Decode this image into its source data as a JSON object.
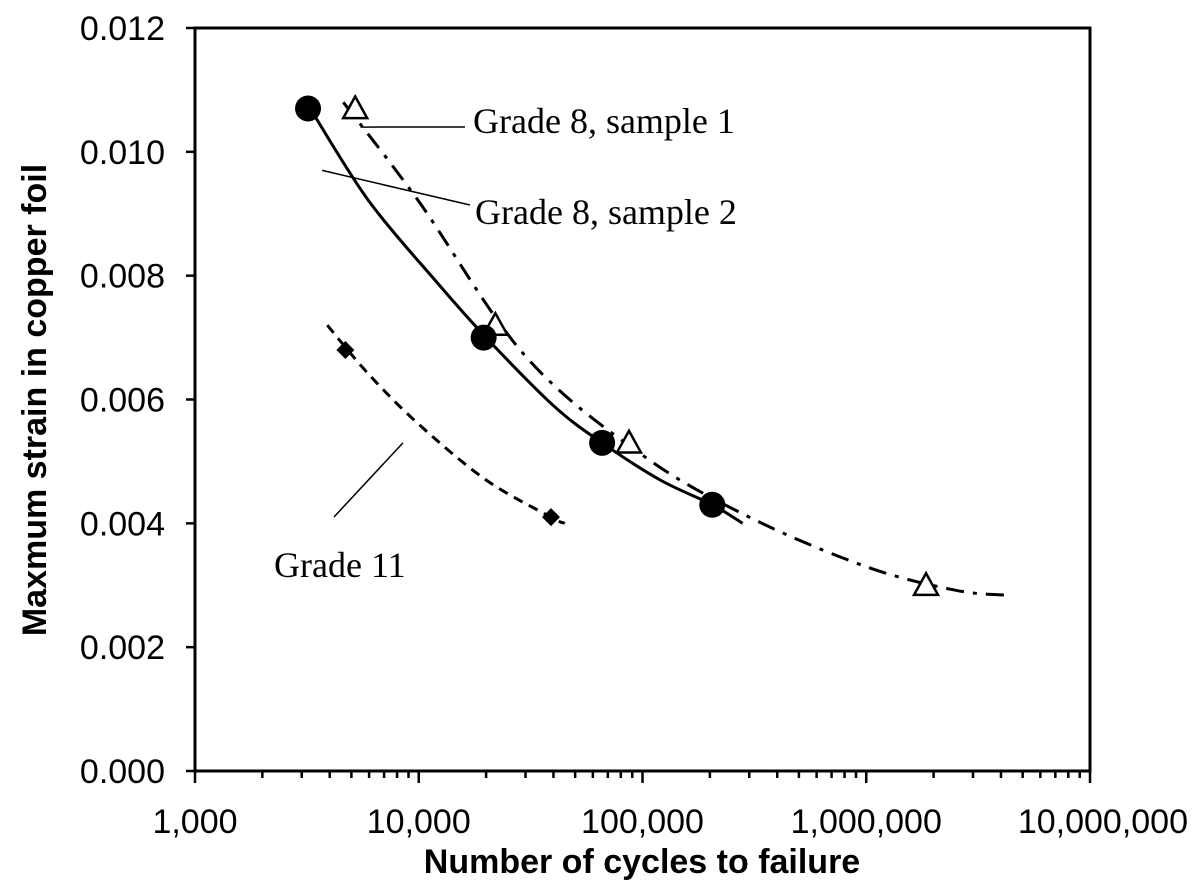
{
  "chart_data": {
    "type": "scatter",
    "title": "",
    "xlabel": "Number of cycles to failure",
    "ylabel": "Maxmum strain in copper foil",
    "xscale": "log",
    "xlim": [
      1000,
      10000000
    ],
    "ylim": [
      0.0,
      0.012
    ],
    "x_ticks": [
      1000,
      10000,
      100000,
      1000000,
      10000000
    ],
    "x_tick_labels": [
      "1,000",
      "10,000",
      "100,000",
      "1,000,000",
      "10,000,000"
    ],
    "y_ticks": [
      0.0,
      0.002,
      0.004,
      0.006,
      0.008,
      0.01,
      0.012
    ],
    "y_tick_labels": [
      "0.000",
      "0.002",
      "0.004",
      "0.006",
      "0.008",
      "0.010",
      "0.012"
    ],
    "grid": false,
    "legend": "none",
    "series": [
      {
        "name": "Grade 8, sample 1",
        "marker": "open-triangle",
        "line": "dash-dot",
        "points": [
          [
            5200,
            0.0107
          ],
          [
            22000,
            0.0072
          ],
          [
            87000,
            0.0053
          ],
          [
            1850000,
            0.003
          ]
        ],
        "trend": [
          [
            4600,
            0.0108
          ],
          [
            10000,
            0.0092
          ],
          [
            30000,
            0.0067
          ],
          [
            100000,
            0.0051
          ],
          [
            300000,
            0.0041
          ],
          [
            1000000,
            0.0033
          ],
          [
            2500000,
            0.00292
          ],
          [
            4200000,
            0.00284
          ]
        ]
      },
      {
        "name": "Grade 8, sample 2",
        "marker": "filled-circle",
        "line": "solid",
        "points": [
          [
            3200,
            0.0107
          ],
          [
            19500,
            0.007
          ],
          [
            66000,
            0.0053
          ],
          [
            205000,
            0.0043
          ]
        ],
        "trend": [
          [
            3400,
            0.0106
          ],
          [
            6000,
            0.0092
          ],
          [
            12000,
            0.0079
          ],
          [
            20000,
            0.007
          ],
          [
            40000,
            0.0059
          ],
          [
            66000,
            0.0053
          ],
          [
            120000,
            0.0047
          ],
          [
            205000,
            0.0043
          ],
          [
            280000,
            0.004
          ]
        ]
      },
      {
        "name": "Grade 11",
        "marker": "filled-diamond",
        "line": "dashed",
        "points": [
          [
            4700,
            0.0068
          ],
          [
            39000,
            0.0041
          ]
        ],
        "trend": [
          [
            3900,
            0.0072
          ],
          [
            6000,
            0.0064
          ],
          [
            10000,
            0.0056
          ],
          [
            20000,
            0.0047
          ],
          [
            39000,
            0.0041
          ],
          [
            45000,
            0.004
          ]
        ]
      }
    ],
    "annotations": [
      {
        "text": "Grade 8, sample 1",
        "pointer_to": [
          5500,
          0.0104
        ]
      },
      {
        "text": "Grade 8, sample 2",
        "pointer_to": [
          3700,
          0.0097
        ]
      },
      {
        "text": "Grade 11",
        "pointer_to": [
          8500,
          0.0053
        ]
      }
    ]
  }
}
